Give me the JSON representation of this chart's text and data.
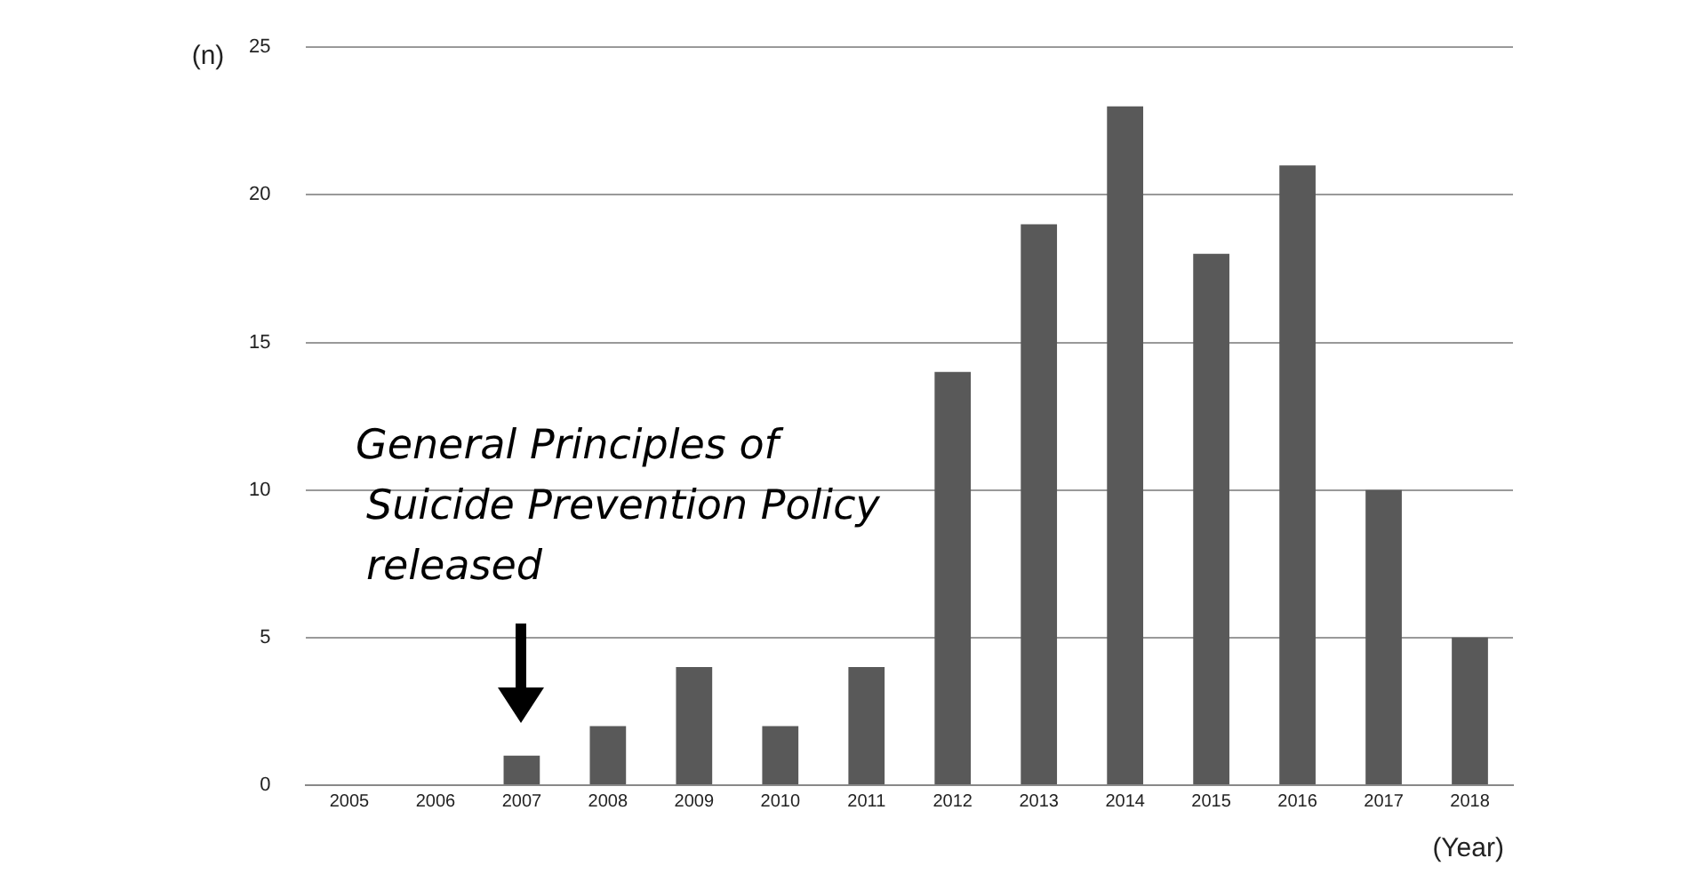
{
  "chart_data": {
    "type": "bar",
    "categories": [
      "2005",
      "2006",
      "2007",
      "2008",
      "2009",
      "2010",
      "2011",
      "2012",
      "2013",
      "2014",
      "2015",
      "2016",
      "2017",
      "2018"
    ],
    "values": [
      0,
      0,
      1,
      2,
      4,
      2,
      4,
      14,
      19,
      23,
      18,
      21,
      10,
      5
    ],
    "color": "#595959",
    "ylabel": "(n)",
    "xlabel": "(Year)",
    "ylim": [
      0,
      25
    ],
    "yticks": [
      0,
      5,
      10,
      15,
      20,
      25
    ],
    "grid": "y",
    "annotations": [
      "General Principles of\nSuicide Prevention Policy\nreleased"
    ]
  }
}
